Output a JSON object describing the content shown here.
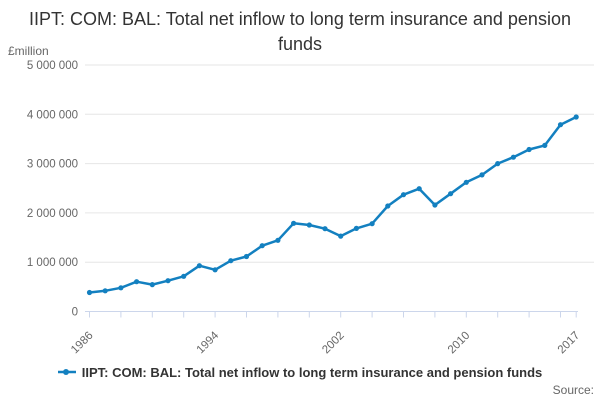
{
  "title": "IIPT: COM: BAL: Total net inflow to long term insurance and pension funds",
  "y_axis_unit": "£million",
  "source_label": "Source:",
  "legend": {
    "label": "IIPT: COM: BAL: Total net inflow to long term insurance and pension funds"
  },
  "colors": {
    "line": "#1380c0",
    "grid": "#e6e6e6",
    "axis": "#ccd6eb",
    "tick_label": "#666666",
    "title_text": "#333333"
  },
  "chart_data": {
    "type": "line",
    "title": "IIPT: COM: BAL: Total net inflow to long term insurance and pension funds",
    "ylabel": "£million",
    "ylim": [
      0,
      5000000
    ],
    "grid": "horizontal",
    "legend_position": "bottom",
    "marker": "circle",
    "x": [
      1986,
      1987,
      1988,
      1989,
      1990,
      1991,
      1992,
      1993,
      1994,
      1995,
      1996,
      1997,
      1998,
      1999,
      2000,
      2001,
      2002,
      2003,
      2004,
      2005,
      2006,
      2007,
      2008,
      2009,
      2010,
      2011,
      2012,
      2013,
      2014,
      2015,
      2016,
      2017
    ],
    "values": [
      385000,
      420000,
      480000,
      605000,
      545000,
      625000,
      715000,
      930000,
      845000,
      1030000,
      1115000,
      1335000,
      1445000,
      1790000,
      1755000,
      1680000,
      1530000,
      1685000,
      1780000,
      2140000,
      2370000,
      2490000,
      2160000,
      2390000,
      2620000,
      2770000,
      3000000,
      3130000,
      3285000,
      3370000,
      3790000,
      3945000
    ],
    "y_ticks": [
      {
        "value": 0,
        "label": "0"
      },
      {
        "value": 1000000,
        "label": "1 000 000"
      },
      {
        "value": 2000000,
        "label": "2 000 000"
      },
      {
        "value": 3000000,
        "label": "3 000 000"
      },
      {
        "value": 4000000,
        "label": "4 000 000"
      },
      {
        "value": 5000000,
        "label": "5 000 000"
      }
    ],
    "x_tick_years": [
      1986,
      1988,
      1990,
      1992,
      1994,
      1996,
      1998,
      2000,
      2002,
      2004,
      2006,
      2008,
      2010,
      2012,
      2014,
      2016,
      2017
    ],
    "x_labeled_ticks": [
      {
        "year": 1986,
        "label": "1986"
      },
      {
        "year": 1994,
        "label": "1994"
      },
      {
        "year": 2002,
        "label": "2002"
      },
      {
        "year": 2010,
        "label": "2010"
      },
      {
        "year": 2017,
        "label": "2017"
      }
    ]
  }
}
